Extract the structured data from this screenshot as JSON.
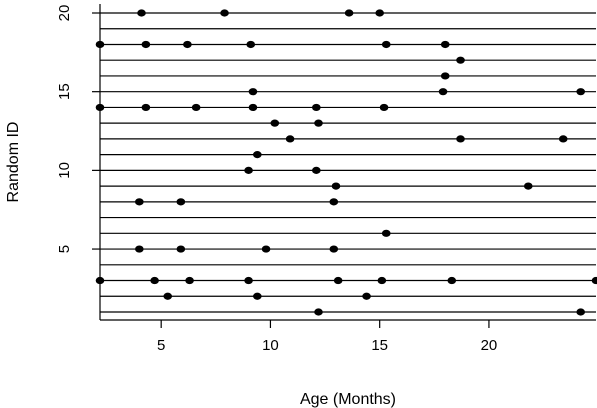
{
  "chart_data": {
    "type": "scatter",
    "title": "",
    "xlabel": "Age (Months)",
    "ylabel": "Random ID",
    "xlim": [
      2.2,
      24.9
    ],
    "ylim": [
      1,
      20
    ],
    "x_ticks": [
      5,
      10,
      15,
      20
    ],
    "y_ticks": [
      5,
      10,
      15,
      20
    ],
    "x_tick_labels": [
      "5",
      "10",
      "15",
      "20"
    ],
    "y_tick_labels": [
      "5",
      "10",
      "15",
      "20"
    ],
    "grid": "horizontal line at every ID",
    "legend": "none",
    "marker_color": "#000000",
    "ids": [
      {
        "id": 1,
        "ages": [
          12.2,
          24.2
        ]
      },
      {
        "id": 2,
        "ages": [
          5.3,
          9.4,
          14.4
        ]
      },
      {
        "id": 3,
        "ages": [
          2.2,
          4.7,
          6.3,
          9.0,
          13.1,
          15.1,
          18.3,
          24.9
        ]
      },
      {
        "id": 4,
        "ages": []
      },
      {
        "id": 5,
        "ages": [
          4.0,
          5.9,
          9.8,
          12.9
        ]
      },
      {
        "id": 6,
        "ages": [
          15.3
        ]
      },
      {
        "id": 7,
        "ages": []
      },
      {
        "id": 8,
        "ages": [
          4.0,
          5.9,
          12.9
        ]
      },
      {
        "id": 9,
        "ages": [
          13.0,
          21.8
        ]
      },
      {
        "id": 10,
        "ages": [
          9.0,
          12.1
        ]
      },
      {
        "id": 11,
        "ages": [
          9.4
        ]
      },
      {
        "id": 12,
        "ages": [
          10.9,
          18.7,
          23.4
        ]
      },
      {
        "id": 13,
        "ages": [
          10.2,
          12.2
        ]
      },
      {
        "id": 14,
        "ages": [
          2.2,
          4.3,
          6.6,
          9.2,
          12.1,
          15.2
        ]
      },
      {
        "id": 15,
        "ages": [
          9.2,
          17.9,
          24.2
        ]
      },
      {
        "id": 16,
        "ages": [
          18.0
        ]
      },
      {
        "id": 17,
        "ages": [
          18.7
        ]
      },
      {
        "id": 18,
        "ages": [
          2.2,
          4.3,
          6.2,
          9.1,
          15.3,
          18.0
        ]
      },
      {
        "id": 19,
        "ages": []
      },
      {
        "id": 20,
        "ages": [
          4.1,
          7.9,
          13.6,
          15.0
        ]
      }
    ]
  }
}
